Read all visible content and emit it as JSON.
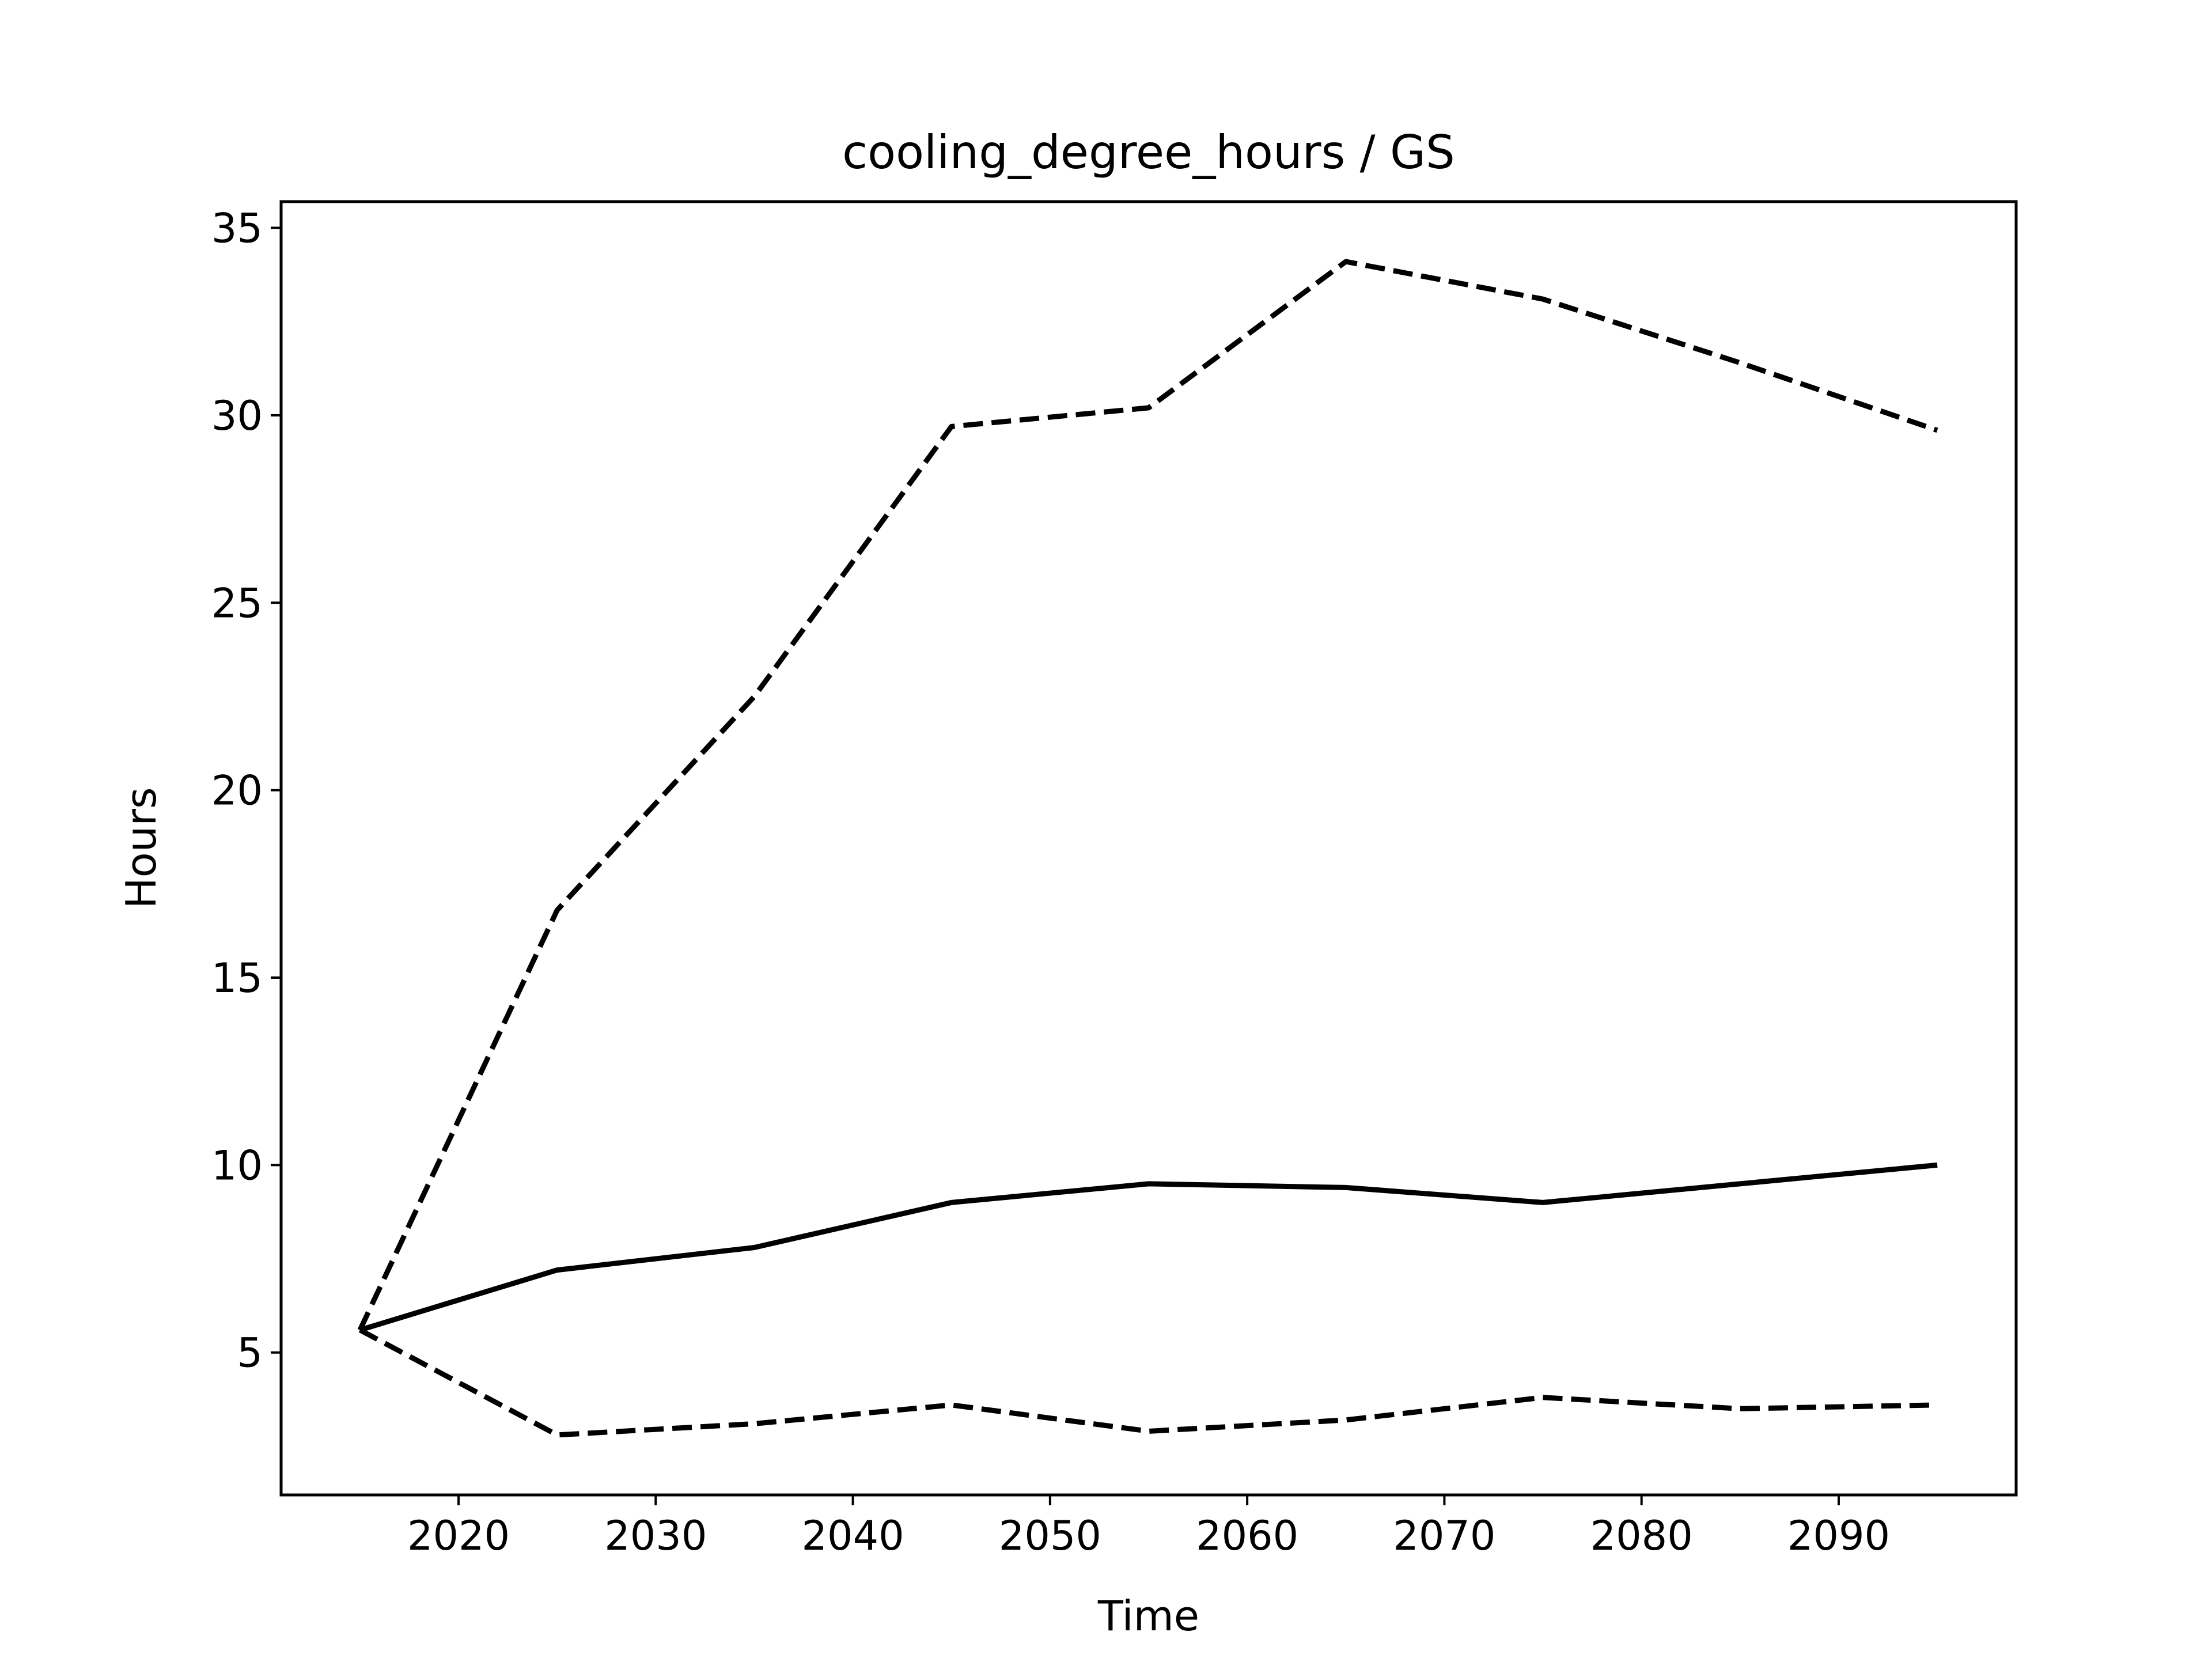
{
  "chart_data": {
    "type": "line",
    "title": "cooling_degree_hours / GS",
    "xlabel": "Time",
    "ylabel": "Hours",
    "xlim": [
      2011,
      2099
    ],
    "ylim": [
      1.2,
      35.7
    ],
    "x_ticks": [
      2020,
      2030,
      2040,
      2050,
      2060,
      2070,
      2080,
      2090
    ],
    "y_ticks": [
      5,
      10,
      15,
      20,
      25,
      30,
      35
    ],
    "grid": false,
    "legend": "none",
    "x": [
      2015,
      2025,
      2035,
      2045,
      2055,
      2065,
      2075,
      2085,
      2095
    ],
    "series": [
      {
        "style": "dashed",
        "color": "#000000",
        "values": [
          5.6,
          16.8,
          22.5,
          29.7,
          30.2,
          34.1,
          33.1,
          31.4,
          29.6
        ]
      },
      {
        "style": "solid",
        "color": "#000000",
        "values": [
          5.6,
          7.2,
          7.8,
          9.0,
          9.5,
          9.4,
          9.0,
          9.5,
          10.0
        ]
      },
      {
        "style": "dashed",
        "color": "#000000",
        "values": [
          5.6,
          2.8,
          3.1,
          3.6,
          2.9,
          3.2,
          3.8,
          3.5,
          3.6
        ]
      }
    ]
  }
}
